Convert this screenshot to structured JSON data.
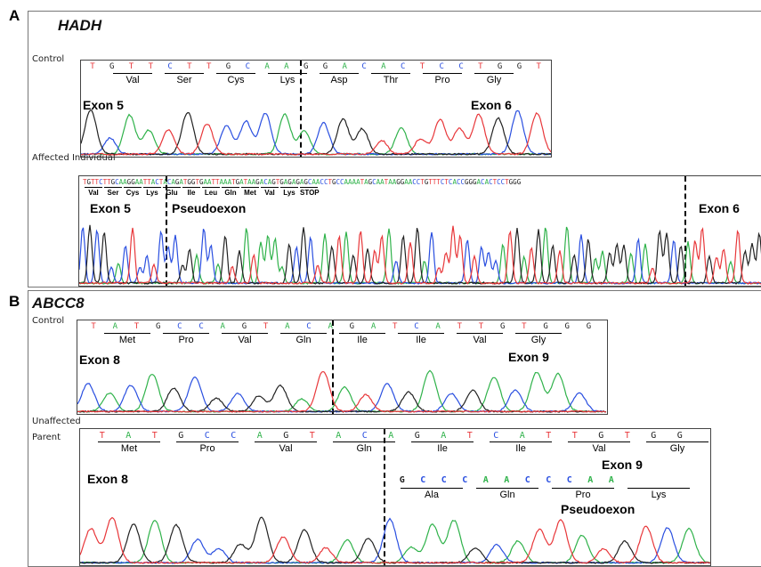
{
  "panelA": {
    "label": "A",
    "gene": "HADH",
    "control": {
      "row_label": "Control",
      "bases": [
        "T",
        "G",
        "T",
        "T",
        "C",
        "T",
        "T",
        "G",
        "C",
        "A",
        "A",
        "G",
        "G",
        "A",
        "C",
        "A",
        "C",
        "T",
        "C",
        "C",
        "T",
        "G",
        "G",
        "T"
      ],
      "amino_acids": [
        "Val",
        "Ser",
        "Cys",
        "Lys",
        "Asp",
        "Thr",
        "Pro",
        "Gly"
      ],
      "exon_left": "Exon 5",
      "exon_right": "Exon 6"
    },
    "affected": {
      "row_label": "Affected Individual",
      "sequence": "TGTTCTTGCAAGGAATTACTACAGATGGTGAATTAAATGATAAGACAGTGAGAGAGCAACCTGCCAAAATAGCAATAAGGAACCTGTTTCTCACCGGGACACTCCTGGG",
      "amino_acids": [
        "Val",
        "Ser",
        "Cys",
        "Lys",
        "Glu",
        "Ile",
        "Leu",
        "Gln",
        "Met",
        "Val",
        "Lys",
        "STOP"
      ],
      "exon_left": "Exon 5",
      "pseudoexon": "Pseudoexon",
      "exon_right": "Exon 6"
    }
  },
  "panelB": {
    "label": "B",
    "gene": "ABCC8",
    "control": {
      "row_label": "Control",
      "bases": [
        "T",
        "A",
        "T",
        "G",
        "C",
        "C",
        "A",
        "G",
        "T",
        "A",
        "C",
        "A",
        "G",
        "A",
        "T",
        "C",
        "A",
        "T",
        "T",
        "G",
        "T",
        "G",
        "G",
        "G"
      ],
      "amino_acids": [
        "Met",
        "Pro",
        "Val",
        "Gln",
        "Ile",
        "Ile",
        "Val",
        "Gly"
      ],
      "exon_left": "Exon 8",
      "exon_right": "Exon 9"
    },
    "parent": {
      "row_label_1": "Unaffected",
      "row_label_2": "Parent",
      "bases": [
        "T",
        "A",
        "T",
        "G",
        "C",
        "C",
        "A",
        "G",
        "T",
        "A",
        "C",
        "A",
        "G",
        "A",
        "T",
        "C",
        "A",
        "T",
        "T",
        "G",
        "T",
        "G",
        "G"
      ],
      "amino_acids": [
        "Met",
        "Pro",
        "Val",
        "Gln",
        "Ile",
        "Ile",
        "Val",
        "Gly"
      ],
      "alt_bases": [
        "G",
        "C",
        "C",
        "C",
        "A",
        "A",
        "C",
        "C",
        "C",
        "A",
        "A"
      ],
      "alt_amino_acids": [
        "Ala",
        "Gln",
        "Pro",
        "Lys"
      ],
      "exon_left": "Exon 8",
      "exon_right": "Exon 9",
      "pseudoexon": "Pseudoexon"
    }
  },
  "colors": {
    "A": "#2fb24a",
    "C": "#2a4fe0",
    "G": "#222222",
    "T": "#e8373a"
  }
}
